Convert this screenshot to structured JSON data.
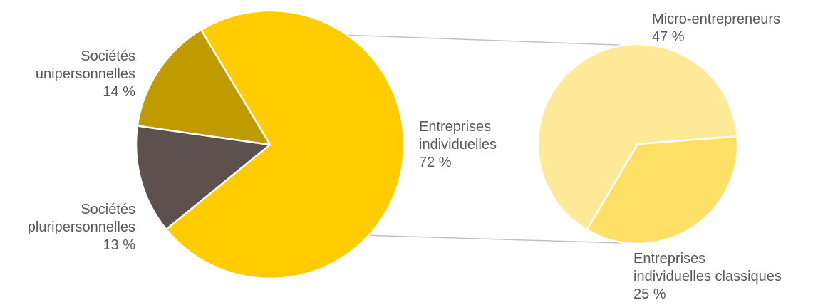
{
  "chart_data": {
    "type": "pie",
    "subtype": "pie-of-pie",
    "main": {
      "slices": [
        {
          "key": "ei",
          "lines": [
            "Entreprises",
            "individuelles"
          ],
          "pct_label": "72 %",
          "value": 72,
          "color": "#FFCC00"
        },
        {
          "key": "sp",
          "lines": [
            "Sociétés",
            "pluripersonnelles"
          ],
          "pct_label": "13 %",
          "value": 13,
          "color": "#5E514D"
        },
        {
          "key": "su",
          "lines": [
            "Sociétés",
            "unipersonnelles"
          ],
          "pct_label": "14 %",
          "value": 14,
          "color": "#BF9B00"
        }
      ]
    },
    "breakout": {
      "of": "ei",
      "slices": [
        {
          "key": "me",
          "lines": [
            "Micro-entrepreneurs"
          ],
          "pct_label": "47 %",
          "value": 47,
          "color": "#FFEA99"
        },
        {
          "key": "eic",
          "lines": [
            "Entreprises",
            "individuelles classiques"
          ],
          "pct_label": "25 %",
          "value": 25,
          "color": "#FFE066"
        }
      ]
    },
    "connector_color": "#C7BFBF",
    "label_color": "#595959"
  }
}
